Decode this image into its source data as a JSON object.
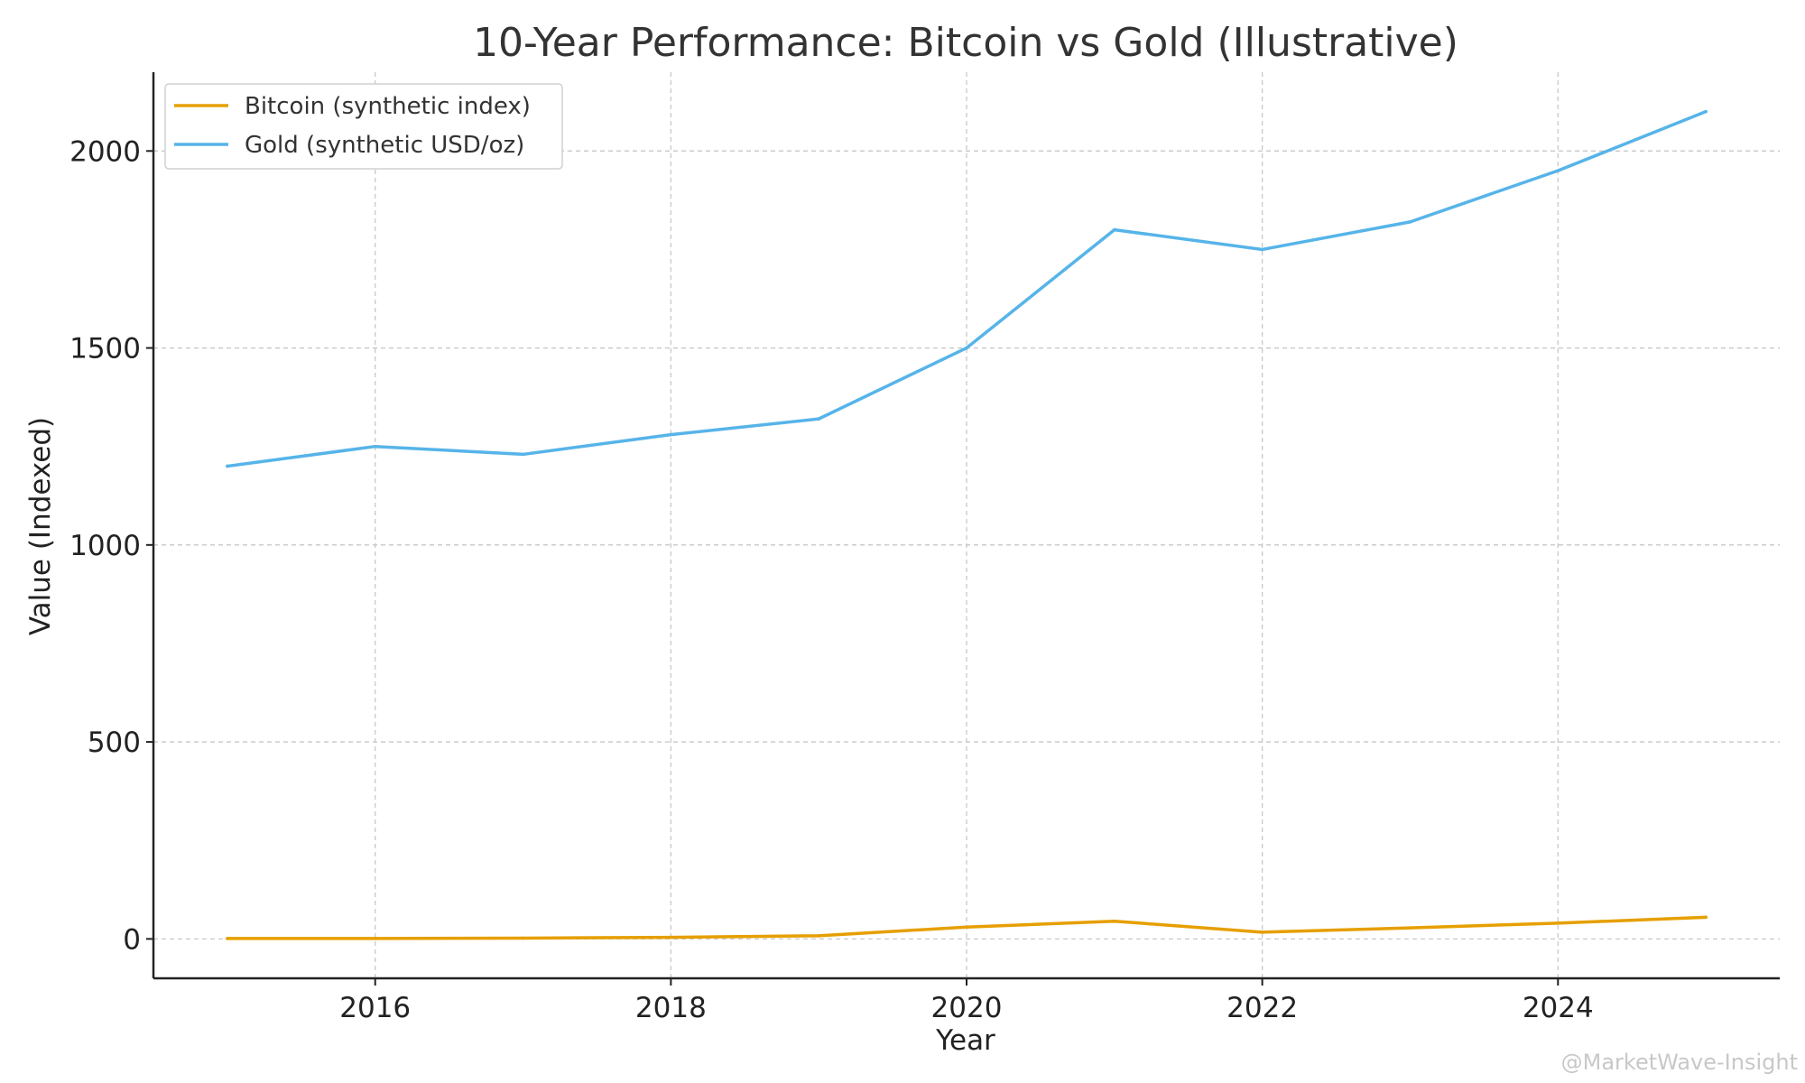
{
  "chart_data": {
    "type": "line",
    "title": "10-Year Performance: Bitcoin vs Gold (Illustrative)",
    "xlabel": "Year",
    "ylabel": "Value (Indexed)",
    "x": [
      2015,
      2016,
      2017,
      2018,
      2019,
      2020,
      2021,
      2022,
      2023,
      2024,
      2025
    ],
    "xlim": [
      2014.5,
      2025.5
    ],
    "ylim": [
      -100,
      2200
    ],
    "xticks": [
      2016,
      2018,
      2020,
      2022,
      2024
    ],
    "yticks": [
      0,
      500,
      1000,
      1500,
      2000
    ],
    "grid": true,
    "legend_position": "top-left",
    "series": [
      {
        "name": "Bitcoin (synthetic index)",
        "color": "#E69F00",
        "values": [
          1,
          1,
          2,
          4,
          8,
          30,
          45,
          17,
          28,
          40,
          55
        ]
      },
      {
        "name": "Gold (synthetic USD/oz)",
        "color": "#56B4E9",
        "values": [
          1200,
          1250,
          1230,
          1280,
          1320,
          1500,
          1800,
          1750,
          1820,
          1950,
          2100
        ]
      }
    ]
  },
  "watermark": "@MarketWave-Insight"
}
